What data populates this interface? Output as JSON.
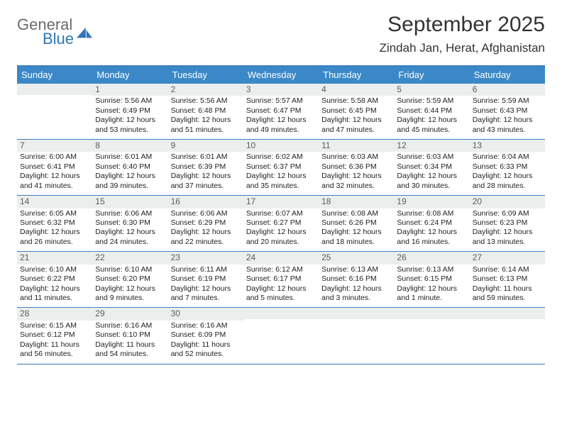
{
  "logo": {
    "word1": "General",
    "word2": "Blue",
    "gray": "#6b6b6b",
    "blue": "#2f76b6"
  },
  "title": "September 2025",
  "subtitle": "Zindah Jan, Herat, Afghanistan",
  "header_bg": "#3b88c8",
  "border_color": "#3b7fbf",
  "daynum_bg": "#eceeee",
  "weekdays": [
    "Sunday",
    "Monday",
    "Tuesday",
    "Wednesday",
    "Thursday",
    "Friday",
    "Saturday"
  ],
  "weeks": [
    [
      {
        "n": "",
        "sr": "",
        "ss": "",
        "dl": ""
      },
      {
        "n": "1",
        "sr": "Sunrise: 5:56 AM",
        "ss": "Sunset: 6:49 PM",
        "dl": "Daylight: 12 hours and 53 minutes."
      },
      {
        "n": "2",
        "sr": "Sunrise: 5:56 AM",
        "ss": "Sunset: 6:48 PM",
        "dl": "Daylight: 12 hours and 51 minutes."
      },
      {
        "n": "3",
        "sr": "Sunrise: 5:57 AM",
        "ss": "Sunset: 6:47 PM",
        "dl": "Daylight: 12 hours and 49 minutes."
      },
      {
        "n": "4",
        "sr": "Sunrise: 5:58 AM",
        "ss": "Sunset: 6:45 PM",
        "dl": "Daylight: 12 hours and 47 minutes."
      },
      {
        "n": "5",
        "sr": "Sunrise: 5:59 AM",
        "ss": "Sunset: 6:44 PM",
        "dl": "Daylight: 12 hours and 45 minutes."
      },
      {
        "n": "6",
        "sr": "Sunrise: 5:59 AM",
        "ss": "Sunset: 6:43 PM",
        "dl": "Daylight: 12 hours and 43 minutes."
      }
    ],
    [
      {
        "n": "7",
        "sr": "Sunrise: 6:00 AM",
        "ss": "Sunset: 6:41 PM",
        "dl": "Daylight: 12 hours and 41 minutes."
      },
      {
        "n": "8",
        "sr": "Sunrise: 6:01 AM",
        "ss": "Sunset: 6:40 PM",
        "dl": "Daylight: 12 hours and 39 minutes."
      },
      {
        "n": "9",
        "sr": "Sunrise: 6:01 AM",
        "ss": "Sunset: 6:39 PM",
        "dl": "Daylight: 12 hours and 37 minutes."
      },
      {
        "n": "10",
        "sr": "Sunrise: 6:02 AM",
        "ss": "Sunset: 6:37 PM",
        "dl": "Daylight: 12 hours and 35 minutes."
      },
      {
        "n": "11",
        "sr": "Sunrise: 6:03 AM",
        "ss": "Sunset: 6:36 PM",
        "dl": "Daylight: 12 hours and 32 minutes."
      },
      {
        "n": "12",
        "sr": "Sunrise: 6:03 AM",
        "ss": "Sunset: 6:34 PM",
        "dl": "Daylight: 12 hours and 30 minutes."
      },
      {
        "n": "13",
        "sr": "Sunrise: 6:04 AM",
        "ss": "Sunset: 6:33 PM",
        "dl": "Daylight: 12 hours and 28 minutes."
      }
    ],
    [
      {
        "n": "14",
        "sr": "Sunrise: 6:05 AM",
        "ss": "Sunset: 6:32 PM",
        "dl": "Daylight: 12 hours and 26 minutes."
      },
      {
        "n": "15",
        "sr": "Sunrise: 6:06 AM",
        "ss": "Sunset: 6:30 PM",
        "dl": "Daylight: 12 hours and 24 minutes."
      },
      {
        "n": "16",
        "sr": "Sunrise: 6:06 AM",
        "ss": "Sunset: 6:29 PM",
        "dl": "Daylight: 12 hours and 22 minutes."
      },
      {
        "n": "17",
        "sr": "Sunrise: 6:07 AM",
        "ss": "Sunset: 6:27 PM",
        "dl": "Daylight: 12 hours and 20 minutes."
      },
      {
        "n": "18",
        "sr": "Sunrise: 6:08 AM",
        "ss": "Sunset: 6:26 PM",
        "dl": "Daylight: 12 hours and 18 minutes."
      },
      {
        "n": "19",
        "sr": "Sunrise: 6:08 AM",
        "ss": "Sunset: 6:24 PM",
        "dl": "Daylight: 12 hours and 16 minutes."
      },
      {
        "n": "20",
        "sr": "Sunrise: 6:09 AM",
        "ss": "Sunset: 6:23 PM",
        "dl": "Daylight: 12 hours and 13 minutes."
      }
    ],
    [
      {
        "n": "21",
        "sr": "Sunrise: 6:10 AM",
        "ss": "Sunset: 6:22 PM",
        "dl": "Daylight: 12 hours and 11 minutes."
      },
      {
        "n": "22",
        "sr": "Sunrise: 6:10 AM",
        "ss": "Sunset: 6:20 PM",
        "dl": "Daylight: 12 hours and 9 minutes."
      },
      {
        "n": "23",
        "sr": "Sunrise: 6:11 AM",
        "ss": "Sunset: 6:19 PM",
        "dl": "Daylight: 12 hours and 7 minutes."
      },
      {
        "n": "24",
        "sr": "Sunrise: 6:12 AM",
        "ss": "Sunset: 6:17 PM",
        "dl": "Daylight: 12 hours and 5 minutes."
      },
      {
        "n": "25",
        "sr": "Sunrise: 6:13 AM",
        "ss": "Sunset: 6:16 PM",
        "dl": "Daylight: 12 hours and 3 minutes."
      },
      {
        "n": "26",
        "sr": "Sunrise: 6:13 AM",
        "ss": "Sunset: 6:15 PM",
        "dl": "Daylight: 12 hours and 1 minute."
      },
      {
        "n": "27",
        "sr": "Sunrise: 6:14 AM",
        "ss": "Sunset: 6:13 PM",
        "dl": "Daylight: 11 hours and 59 minutes."
      }
    ],
    [
      {
        "n": "28",
        "sr": "Sunrise: 6:15 AM",
        "ss": "Sunset: 6:12 PM",
        "dl": "Daylight: 11 hours and 56 minutes."
      },
      {
        "n": "29",
        "sr": "Sunrise: 6:16 AM",
        "ss": "Sunset: 6:10 PM",
        "dl": "Daylight: 11 hours and 54 minutes."
      },
      {
        "n": "30",
        "sr": "Sunrise: 6:16 AM",
        "ss": "Sunset: 6:09 PM",
        "dl": "Daylight: 11 hours and 52 minutes."
      },
      {
        "n": "",
        "sr": "",
        "ss": "",
        "dl": ""
      },
      {
        "n": "",
        "sr": "",
        "ss": "",
        "dl": ""
      },
      {
        "n": "",
        "sr": "",
        "ss": "",
        "dl": ""
      },
      {
        "n": "",
        "sr": "",
        "ss": "",
        "dl": ""
      }
    ]
  ]
}
